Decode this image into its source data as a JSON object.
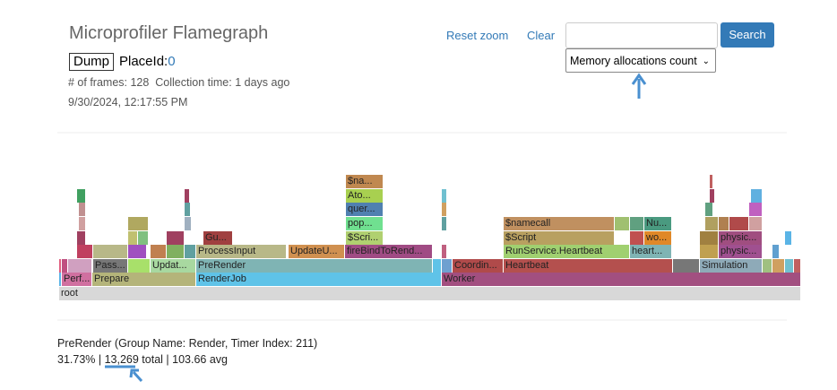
{
  "header": {
    "title": "Microprofiler Flamegraph",
    "dump_button": "Dump",
    "place_id_label": "PlaceId:",
    "place_id": "0",
    "frames_info": "# of frames: 128  Collection time: 1 days ago",
    "timestamp": "9/30/2024, 12:17:55 PM"
  },
  "toolbar": {
    "reset_zoom": "Reset zoom",
    "clear": "Clear",
    "search_button": "Search",
    "mode_select": "Memory allocations count"
  },
  "flamegraph": {
    "frames": [
      "root",
      "Perf...",
      "Prepare",
      "RenderJob",
      "Worker",
      "Pass...",
      "Updat...",
      "PreRender",
      "Coordin...",
      "Heartbeat",
      "Simulation",
      "ProcessInput",
      "UpdateU...",
      "fireBindToRend...",
      "RunService.Heartbeat",
      "heart...",
      "physic...",
      "Gu...",
      "$Scri...",
      "$Script",
      "wo...",
      "physic...",
      "pop...",
      "$namecall",
      "Nu...",
      "quer...",
      "Ato...",
      "$na..."
    ]
  },
  "details": {
    "title": "PreRender (Group Name: Render, Timer Index: 211)",
    "stats": "31.73% | 13,269 total | 103.66 avg"
  }
}
